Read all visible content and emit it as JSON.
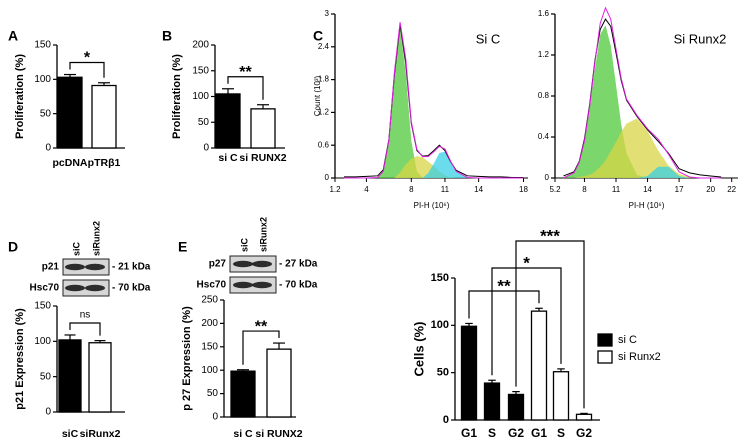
{
  "chart_data": [
    {
      "type": "bar",
      "panel": "A",
      "ylabel": "Proliferation (%)",
      "categories": [
        "pcDNA",
        "pTRβ1"
      ],
      "values": [
        103,
        91
      ],
      "errors": [
        4,
        4
      ],
      "colors": [
        "#000000",
        "#ffffff"
      ],
      "ylim": [
        0,
        150
      ],
      "yticks": [
        0,
        50,
        100,
        150
      ],
      "significance": [
        "*"
      ]
    },
    {
      "type": "bar",
      "panel": "B",
      "ylabel": "Proliferation (%)",
      "categories": [
        "si C",
        "si RUNX2"
      ],
      "values": [
        105,
        76
      ],
      "errors": [
        10,
        8
      ],
      "colors": [
        "#000000",
        "#ffffff"
      ],
      "ylim": [
        0,
        200
      ],
      "yticks": [
        0,
        50,
        100,
        150,
        200
      ],
      "significance": [
        "**"
      ]
    },
    {
      "type": "area",
      "panel": "C",
      "title": "Si C",
      "xlabel": "PI-H (10⁶)",
      "ylabel": "Count (10³)",
      "x": [
        2,
        3,
        4,
        5,
        5.5,
        6,
        6.5,
        7,
        7.5,
        8,
        8.5,
        9,
        9.5,
        10,
        10.5,
        11,
        11.5,
        12,
        13,
        14,
        15,
        16,
        17,
        18
      ],
      "series": [
        {
          "color": "#4fc83a",
          "filled": true,
          "values": [
            0,
            0,
            0,
            0.01,
            0.12,
            0.68,
            1.94,
            2.75,
            1.94,
            0.68,
            0.12,
            0.01,
            0,
            0,
            0,
            0,
            0,
            0,
            0,
            0,
            0,
            0,
            0,
            0
          ]
        },
        {
          "color": "#d8d646",
          "filled": true,
          "values": [
            0,
            0,
            0,
            0,
            0,
            0,
            0,
            0.1,
            0.25,
            0.35,
            0.4,
            0.38,
            0.3,
            0.22,
            0.12,
            0.05,
            0.01,
            0,
            0,
            0,
            0,
            0,
            0,
            0
          ]
        },
        {
          "color": "#3ad0e6",
          "filled": true,
          "values": [
            0,
            0,
            0,
            0,
            0,
            0,
            0,
            0,
            0,
            0,
            0,
            0,
            0.09,
            0.26,
            0.46,
            0.48,
            0.3,
            0.12,
            0,
            0,
            0,
            0,
            0,
            0
          ]
        },
        {
          "color": "#000000",
          "filled": false,
          "values": [
            0.02,
            0.02,
            0.03,
            0.04,
            0.15,
            0.7,
            1.9,
            2.8,
            2.1,
            1.0,
            0.5,
            0.4,
            0.41,
            0.5,
            0.6,
            0.5,
            0.3,
            0.14,
            0.04,
            0.03,
            0.02,
            0.02,
            0.01,
            0.01
          ]
        },
        {
          "color": "#e020e0",
          "filled": false,
          "values": [
            0,
            0,
            0,
            0.01,
            0.12,
            0.68,
            1.94,
            2.85,
            2.19,
            1.03,
            0.52,
            0.39,
            0.39,
            0.48,
            0.58,
            0.53,
            0.31,
            0.12,
            0.01,
            0,
            0,
            0,
            0,
            0
          ]
        }
      ],
      "xlim": [
        1.2,
        18.4
      ],
      "xticks": [
        1.2,
        4,
        8,
        11,
        14,
        18
      ],
      "ylim": [
        0,
        3
      ],
      "yticks": [
        0,
        0.6,
        1.2,
        1.8,
        2.4,
        3
      ]
    },
    {
      "type": "area",
      "title": "Si Runx2",
      "xlabel": "PI-H (10⁶)",
      "x": [
        6,
        7,
        7.5,
        8,
        8.5,
        9,
        9.5,
        10,
        10.5,
        11,
        11.5,
        12,
        13,
        14,
        15,
        16,
        17,
        18,
        19,
        20,
        21
      ],
      "series": [
        {
          "color": "#4fc83a",
          "filled": true,
          "values": [
            0,
            0.05,
            0.14,
            0.34,
            0.67,
            1.07,
            1.4,
            1.49,
            1.29,
            0.91,
            0.52,
            0.24,
            0.03,
            0,
            0,
            0,
            0,
            0,
            0,
            0,
            0
          ]
        },
        {
          "color": "#d8d646",
          "filled": true,
          "values": [
            0,
            0,
            0.01,
            0.02,
            0.03,
            0.06,
            0.11,
            0.17,
            0.26,
            0.35,
            0.45,
            0.53,
            0.58,
            0.46,
            0.27,
            0.12,
            0.04,
            0.01,
            0,
            0,
            0
          ]
        },
        {
          "color": "#3ad0e6",
          "filled": true,
          "values": [
            0,
            0,
            0,
            0,
            0,
            0,
            0,
            0,
            0,
            0,
            0,
            0,
            0,
            0.02,
            0.11,
            0.11,
            0.02,
            0,
            0,
            0,
            0
          ]
        },
        {
          "color": "#000000",
          "filled": false,
          "values": [
            0.02,
            0.06,
            0.16,
            0.38,
            0.72,
            1.15,
            1.45,
            1.55,
            1.48,
            1.22,
            0.95,
            0.76,
            0.6,
            0.47,
            0.36,
            0.24,
            0.09,
            0.05,
            0.03,
            0.02,
            0.01
          ]
        },
        {
          "color": "#e020e0",
          "filled": false,
          "values": [
            0,
            0.05,
            0.15,
            0.36,
            0.7,
            1.13,
            1.51,
            1.66,
            1.55,
            1.26,
            0.97,
            0.77,
            0.61,
            0.48,
            0.38,
            0.23,
            0.06,
            0.01,
            0,
            0,
            0
          ]
        }
      ],
      "xlim": [
        5.2,
        22.6
      ],
      "xticks": [
        5.2,
        8,
        11,
        14,
        17,
        20,
        22
      ],
      "ylim": [
        0,
        1.6
      ],
      "yticks": [
        0,
        0.4,
        0.8,
        1.2,
        1.6
      ]
    },
    {
      "type": "bar",
      "panel": "D",
      "ylabel": "p21 Expression (%)",
      "categories": [
        "siC",
        "siRunx2"
      ],
      "values": [
        102,
        98
      ],
      "errors": [
        7,
        3
      ],
      "colors": [
        "#000000",
        "#ffffff"
      ],
      "ylim": [
        0,
        150
      ],
      "yticks": [
        0,
        50,
        100,
        150
      ],
      "significance": [
        "ns"
      ],
      "blot": {
        "lanes": [
          "siC",
          "siRunx2"
        ],
        "rows": [
          {
            "protein": "p21",
            "size": "- 21 kDa"
          },
          {
            "protein": "Hsc70",
            "size": "- 70 kDa"
          }
        ]
      }
    },
    {
      "type": "bar",
      "panel": "E",
      "ylabel": "p 27 Expression (%)",
      "categories": [
        "si C",
        "si RUNX2"
      ],
      "values": [
        98,
        145
      ],
      "errors": [
        3,
        13
      ],
      "colors": [
        "#000000",
        "#ffffff"
      ],
      "ylim": [
        0,
        250
      ],
      "yticks": [
        0,
        50,
        100,
        150,
        200,
        250
      ],
      "significance": [
        "**"
      ],
      "blot": {
        "lanes": [
          "siC",
          "siRunx2"
        ],
        "rows": [
          {
            "protein": "p27",
            "size": "- 27 kDa"
          },
          {
            "protein": "Hsc70",
            "size": "- 70 kDa"
          }
        ]
      }
    },
    {
      "type": "bar",
      "ylabel": "Cells (%)",
      "categories": [
        "G1",
        "S",
        "G2",
        "G1",
        "S",
        "G2"
      ],
      "series": [
        {
          "name": "si C",
          "color": "#000000",
          "values": [
            99,
            39,
            27,
            null,
            null,
            null
          ],
          "errors": [
            3,
            3,
            3,
            null,
            null,
            null
          ]
        },
        {
          "name": "si Runx2",
          "color": "#ffffff",
          "values": [
            null,
            null,
            null,
            115,
            51,
            6
          ],
          "errors": [
            null,
            null,
            null,
            3,
            3,
            1
          ]
        }
      ],
      "ylim": [
        0,
        150
      ],
      "yticks": [
        0,
        50,
        100,
        150
      ],
      "significance": [
        "**",
        "*",
        "***"
      ],
      "legend": "right"
    }
  ]
}
